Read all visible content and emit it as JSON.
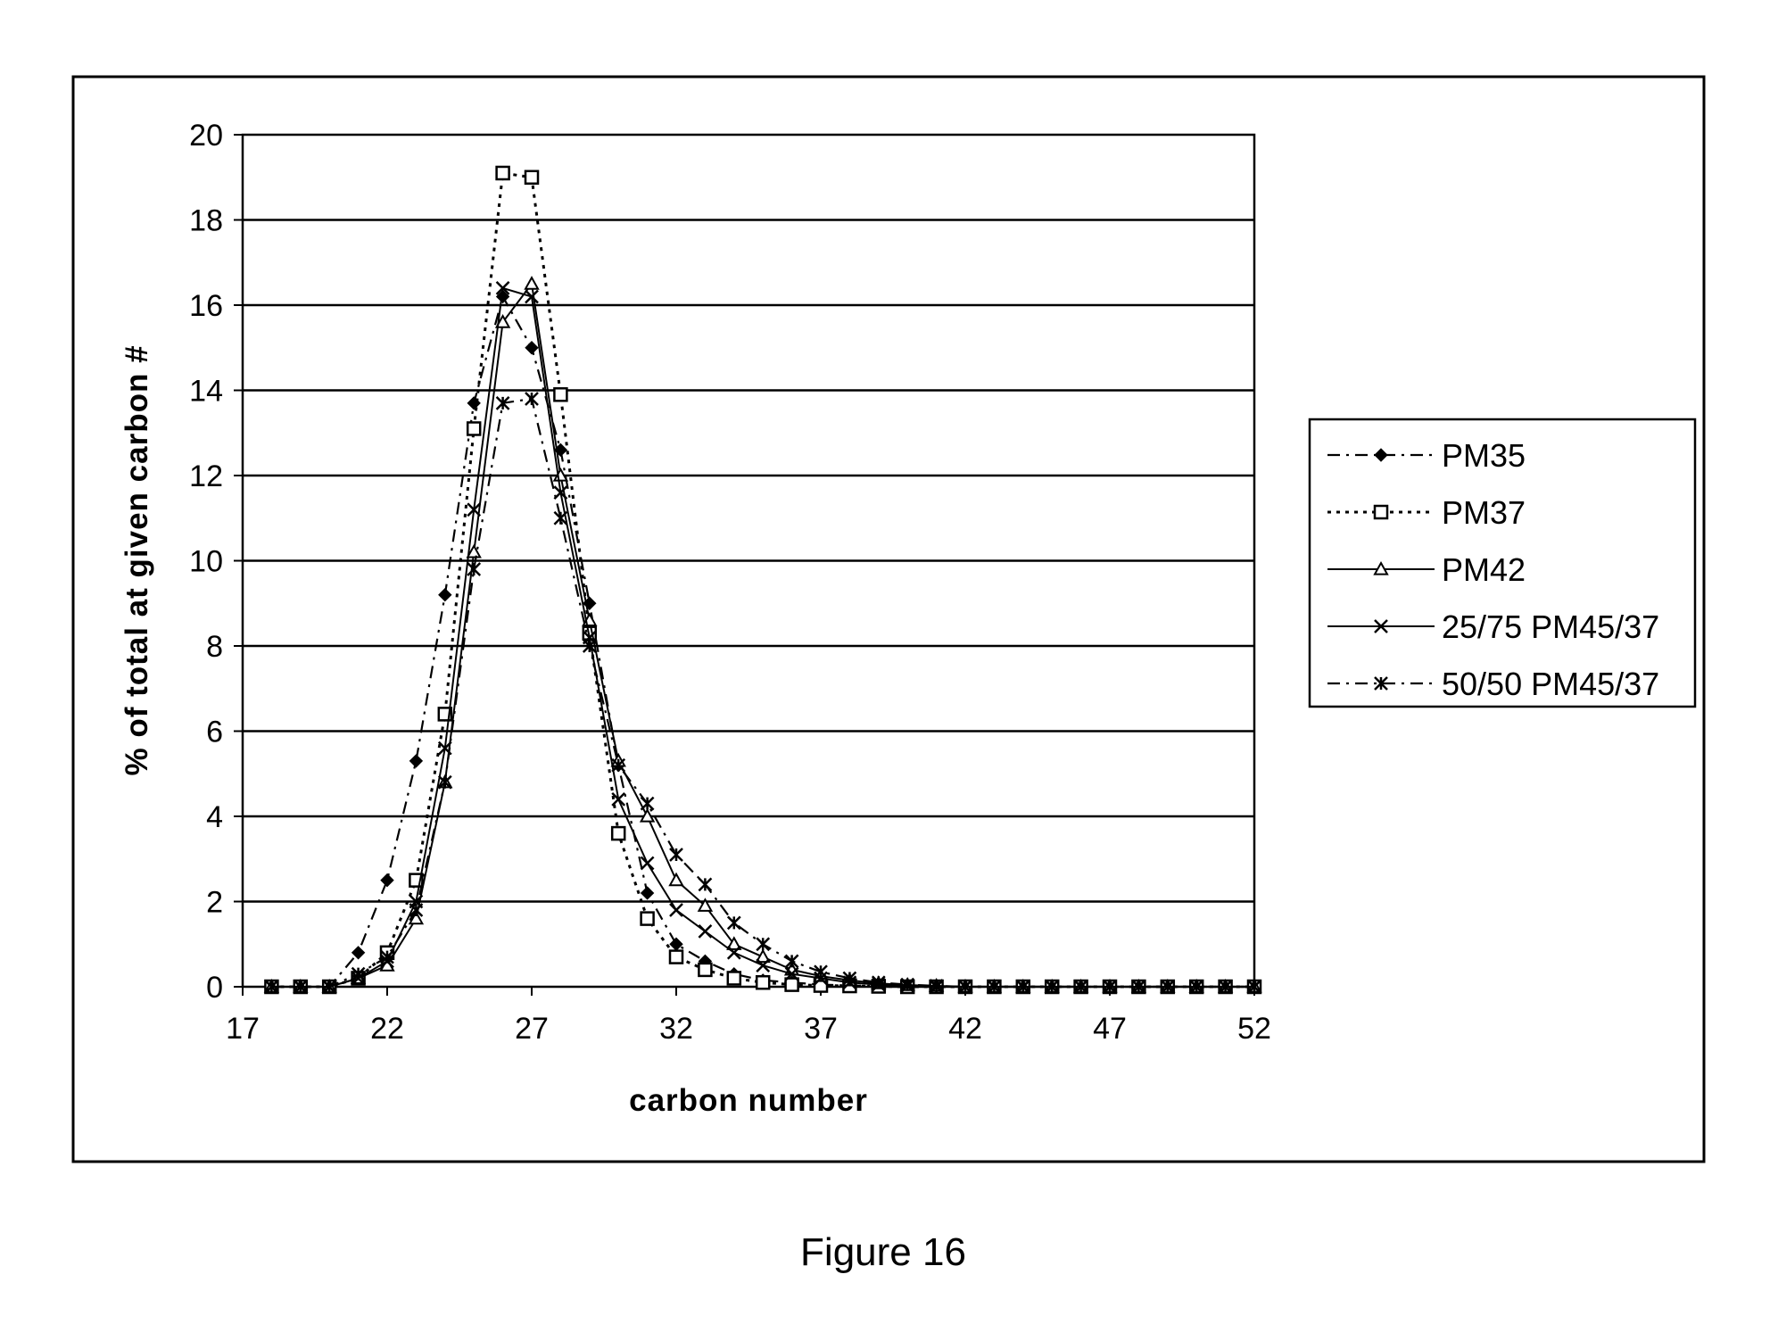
{
  "caption": "Figure 16",
  "chart_data": {
    "type": "line",
    "title": "",
    "xlabel": "carbon number",
    "ylabel": "% of total at given carbon #",
    "xlim": [
      17,
      52
    ],
    "ylim": [
      0,
      20
    ],
    "xticks": [
      17,
      22,
      27,
      32,
      37,
      42,
      47,
      52
    ],
    "yticks": [
      0,
      2,
      4,
      6,
      8,
      10,
      12,
      14,
      16,
      18,
      20
    ],
    "grid": "horizontal",
    "legend_position": "right",
    "x": [
      18,
      19,
      20,
      21,
      22,
      23,
      24,
      25,
      26,
      27,
      28,
      29,
      30,
      31,
      32,
      33,
      34,
      35,
      36,
      37,
      38,
      39,
      40,
      41,
      42,
      43,
      44,
      45,
      46,
      47,
      48,
      49,
      50,
      51,
      52
    ],
    "series": [
      {
        "name": "PM35",
        "marker": "diamond",
        "dash": "dash-dot",
        "values": [
          0,
          0,
          0,
          0.8,
          2.5,
          5.3,
          9.2,
          13.7,
          16.2,
          15.0,
          12.6,
          9.0,
          5.2,
          2.2,
          1.0,
          0.6,
          0.3,
          0.15,
          0.1,
          0.05,
          0.03,
          0.02,
          0,
          0,
          0,
          0,
          0,
          0,
          0,
          0,
          0,
          0,
          0,
          0,
          0
        ]
      },
      {
        "name": "PM37",
        "marker": "square",
        "dash": "dotted",
        "values": [
          0,
          0,
          0,
          0.2,
          0.8,
          2.5,
          6.4,
          13.1,
          19.1,
          19.0,
          13.9,
          8.3,
          3.6,
          1.6,
          0.7,
          0.4,
          0.2,
          0.1,
          0.05,
          0.03,
          0.02,
          0.01,
          0,
          0,
          0,
          0,
          0,
          0,
          0,
          0,
          0,
          0,
          0,
          0,
          0
        ]
      },
      {
        "name": "PM42",
        "marker": "triangle",
        "dash": "solid",
        "values": [
          0,
          0,
          0,
          0.2,
          0.5,
          1.6,
          4.8,
          10.2,
          15.6,
          16.5,
          12.0,
          8.6,
          5.3,
          4.0,
          2.5,
          1.9,
          1.0,
          0.7,
          0.4,
          0.25,
          0.15,
          0.08,
          0.04,
          0.02,
          0,
          0,
          0,
          0,
          0,
          0,
          0,
          0,
          0,
          0,
          0
        ]
      },
      {
        "name": "25/75 PM45/37",
        "marker": "x",
        "dash": "solid",
        "values": [
          0,
          0,
          0,
          0.2,
          0.6,
          2.0,
          5.6,
          11.2,
          16.4,
          16.2,
          11.6,
          8.2,
          4.4,
          2.9,
          1.8,
          1.3,
          0.8,
          0.5,
          0.3,
          0.2,
          0.1,
          0.05,
          0.02,
          0,
          0,
          0,
          0,
          0,
          0,
          0,
          0,
          0,
          0,
          0,
          0
        ]
      },
      {
        "name": "50/50 PM45/37",
        "marker": "asterisk",
        "dash": "dash-dot",
        "values": [
          0,
          0,
          0,
          0.3,
          0.7,
          1.8,
          4.8,
          9.8,
          13.7,
          13.8,
          11.0,
          8.0,
          5.2,
          4.3,
          3.1,
          2.4,
          1.5,
          1.0,
          0.6,
          0.35,
          0.2,
          0.1,
          0.05,
          0.02,
          0,
          0,
          0,
          0,
          0,
          0,
          0,
          0,
          0,
          0,
          0
        ]
      }
    ]
  }
}
